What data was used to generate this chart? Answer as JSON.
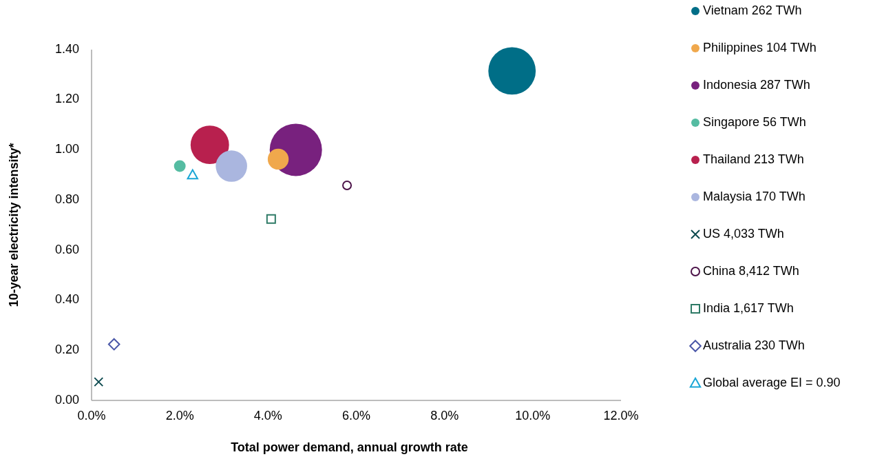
{
  "chart_data": {
    "type": "bubble",
    "xlabel": "Total power demand, annual growth rate",
    "ylabel": "10-year electricity intensity*",
    "xlim": [
      0,
      12
    ],
    "xticks": [
      {
        "value": 0,
        "label": "0.0%"
      },
      {
        "value": 2,
        "label": "2.0%"
      },
      {
        "value": 4,
        "label": "4.0%"
      },
      {
        "value": 6,
        "label": "6.0%"
      },
      {
        "value": 8,
        "label": "8.0%"
      },
      {
        "value": 10,
        "label": "10.0%"
      },
      {
        "value": 12,
        "label": "12.0%"
      }
    ],
    "ylim": [
      0,
      1.4
    ],
    "yticks": [
      {
        "value": 0,
        "label": "0.00"
      },
      {
        "value": 0.2,
        "label": "0.20"
      },
      {
        "value": 0.4,
        "label": "0.40"
      },
      {
        "value": 0.6,
        "label": "0.60"
      },
      {
        "value": 0.8,
        "label": "0.80"
      },
      {
        "value": 1,
        "label": "1.00"
      },
      {
        "value": 1.2,
        "label": "1.20"
      },
      {
        "value": 1.4,
        "label": "1.40"
      }
    ],
    "grid": false,
    "legend": "right",
    "series": [
      {
        "name": "Vietnam 262 TWh",
        "color": "#006e87",
        "x": [
          9.53
        ],
        "values": [
          1.315
        ],
        "sizes": [
          0.82
        ]
      },
      {
        "name": "Philippines 104 TWh",
        "color": "#f0a84c",
        "x": [
          4.23
        ],
        "values": [
          0.963
        ],
        "sizes": [
          0.16
        ]
      },
      {
        "name": "Indonesia 287 TWh",
        "color": "#78217e",
        "x": [
          4.63
        ],
        "values": [
          1.0
        ],
        "sizes": [
          1
        ]
      },
      {
        "name": "Singapore 56 TWh",
        "color": "#55bca2",
        "x": [
          2.0
        ],
        "values": [
          0.935
        ],
        "sizes": [
          0.05
        ]
      },
      {
        "name": "Thailand 213 TWh",
        "color": "#b8204e",
        "x": [
          2.68
        ],
        "values": [
          1.02
        ],
        "sizes": [
          0.54
        ]
      },
      {
        "name": "Malaysia 170 TWh",
        "color": "#aab6df",
        "x": [
          3.17
        ],
        "values": [
          0.935
        ],
        "sizes": [
          0.36
        ]
      },
      {
        "name": "US 4,033 TWh",
        "type": "scatter",
        "marker": "cross",
        "color": "#0d4a4f",
        "x": [
          0.16
        ],
        "values": [
          0.074
        ]
      },
      {
        "name": "China 8,412 TWh",
        "type": "scatter",
        "marker": "circle",
        "color": "#4b1248",
        "x": [
          5.79
        ],
        "values": [
          0.858
        ]
      },
      {
        "name": "India 1,617 TWh",
        "type": "scatter",
        "marker": "square",
        "color": "#2e7a66",
        "x": [
          4.07
        ],
        "values": [
          0.724
        ]
      },
      {
        "name": "Australia 230 TWh",
        "type": "scatter",
        "marker": "diamond",
        "color": "#4a57a8",
        "x": [
          0.51
        ],
        "values": [
          0.224
        ]
      },
      {
        "name": "Global average EI = 0.90",
        "type": "scatter",
        "marker": "triangle",
        "color": "#1aa6d6",
        "x": [
          2.29
        ],
        "values": [
          0.9
        ]
      }
    ]
  }
}
